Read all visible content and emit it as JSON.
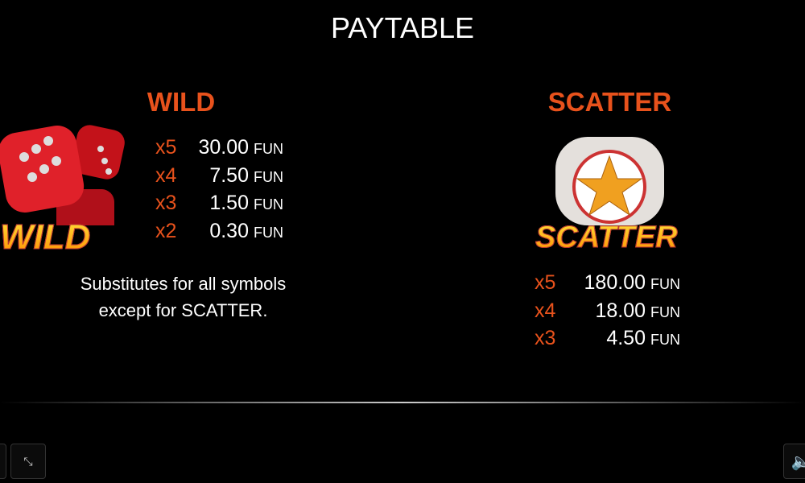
{
  "title": "PAYTABLE",
  "wild": {
    "heading": "WILD",
    "logo_text": "WILD",
    "pays": [
      {
        "mult": "x5",
        "amount": "30.00",
        "currency": "FUN"
      },
      {
        "mult": "x4",
        "amount": "7.50",
        "currency": "FUN"
      },
      {
        "mult": "x3",
        "amount": "1.50",
        "currency": "FUN"
      },
      {
        "mult": "x2",
        "amount": "0.30",
        "currency": "FUN"
      }
    ],
    "description_line1": "Substitutes for all symbols",
    "description_line2": "except for SCATTER."
  },
  "scatter": {
    "heading": "SCATTER",
    "logo_text": "SCATTER",
    "pays": [
      {
        "mult": "x5",
        "amount": "180.00",
        "currency": "FUN"
      },
      {
        "mult": "x4",
        "amount": "18.00",
        "currency": "FUN"
      },
      {
        "mult": "x3",
        "amount": "4.50",
        "currency": "FUN"
      }
    ]
  },
  "controls": {
    "fullscreen_icon": "exit-fullscreen-icon",
    "sound_icon": "speaker-icon"
  },
  "colors": {
    "accent": "#e8521c",
    "background": "#000000"
  }
}
